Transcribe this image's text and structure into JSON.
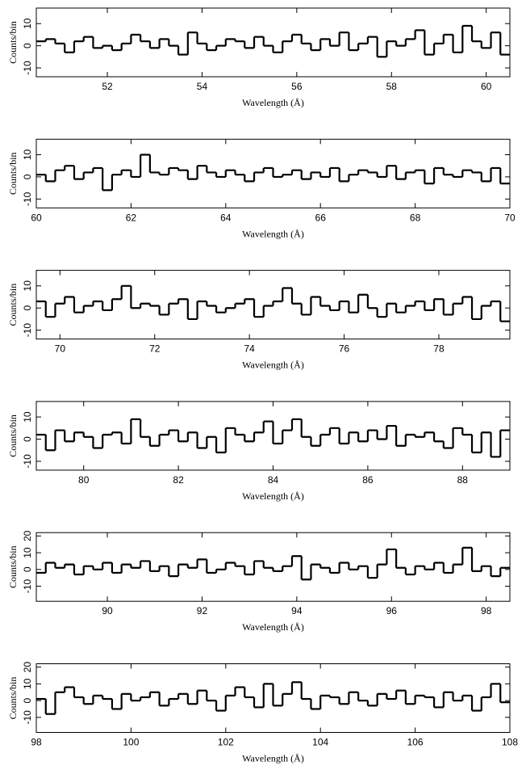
{
  "chart_data": [
    {
      "type": "histogram",
      "ylabel": "Counts/bin",
      "xlabel": "Wavelength (Å)",
      "color": "#000000",
      "bins": [
        50.5,
        50.7,
        50.9,
        51.1,
        51.3,
        51.5,
        51.7,
        51.9,
        52.1,
        52.3,
        52.5,
        52.7,
        52.9,
        53.1,
        53.3,
        53.5,
        53.7,
        53.9,
        54.1,
        54.3,
        54.5,
        54.7,
        54.9,
        55.1,
        55.3,
        55.5,
        55.7,
        55.9,
        56.1,
        56.3,
        56.5,
        56.7,
        56.9,
        57.1,
        57.3,
        57.5,
        57.7,
        57.9,
        58.1,
        58.3,
        58.5,
        58.7,
        58.9,
        59.1,
        59.3,
        59.5,
        59.7,
        59.9,
        60.1,
        60.3,
        60.5
      ],
      "values": [
        2,
        3,
        1,
        -3,
        2,
        4,
        -1,
        0,
        -2,
        1,
        5,
        2,
        -1,
        3,
        0,
        -4,
        6,
        1,
        -2,
        0,
        3,
        2,
        -1,
        4,
        0,
        -3,
        2,
        5,
        1,
        -2,
        3,
        0,
        6,
        -2,
        1,
        4,
        -5,
        2,
        0,
        3,
        7,
        -4,
        1,
        5,
        -3,
        9,
        2,
        -1,
        6,
        -4
      ],
      "xlim": [
        50.5,
        60.5
      ],
      "xticks": [
        52,
        54,
        56,
        58,
        60
      ],
      "ylim": [
        -14,
        17
      ],
      "yticks": [
        -10,
        0,
        10
      ]
    },
    {
      "type": "histogram",
      "ylabel": "Counts/bin",
      "xlabel": "Wavelength (Å)",
      "color": "#000000",
      "bins": [
        60,
        60.2,
        60.4,
        60.6,
        60.8,
        61,
        61.2,
        61.4,
        61.6,
        61.8,
        62,
        62.2,
        62.4,
        62.6,
        62.8,
        63,
        63.2,
        63.4,
        63.6,
        63.8,
        64,
        64.2,
        64.4,
        64.6,
        64.8,
        65,
        65.2,
        65.4,
        65.6,
        65.8,
        66,
        66.2,
        66.4,
        66.6,
        66.8,
        67,
        67.2,
        67.4,
        67.6,
        67.8,
        68,
        68.2,
        68.4,
        68.6,
        68.8,
        69,
        69.2,
        69.4,
        69.6,
        69.8,
        70
      ],
      "values": [
        1,
        -2,
        3,
        5,
        -1,
        2,
        4,
        -6,
        1,
        3,
        0,
        10,
        2,
        1,
        4,
        3,
        -1,
        5,
        2,
        0,
        3,
        1,
        -2,
        2,
        4,
        0,
        1,
        3,
        -1,
        2,
        0,
        4,
        -2,
        1,
        3,
        2,
        0,
        5,
        -1,
        2,
        3,
        -3,
        4,
        1,
        0,
        3,
        2,
        -2,
        4,
        -3
      ],
      "xlim": [
        60,
        70
      ],
      "xticks": [
        60,
        62,
        64,
        66,
        68,
        70
      ],
      "ylim": [
        -14,
        17
      ],
      "yticks": [
        -10,
        0,
        10
      ]
    },
    {
      "type": "histogram",
      "ylabel": "Counts/bin",
      "xlabel": "Wavelength (Å)",
      "color": "#000000",
      "bins": [
        69.5,
        69.7,
        69.9,
        70.1,
        70.3,
        70.5,
        70.7,
        70.9,
        71.1,
        71.3,
        71.5,
        71.7,
        71.9,
        72.1,
        72.3,
        72.5,
        72.7,
        72.9,
        73.1,
        73.3,
        73.5,
        73.7,
        73.9,
        74.1,
        74.3,
        74.5,
        74.7,
        74.9,
        75.1,
        75.3,
        75.5,
        75.7,
        75.9,
        76.1,
        76.3,
        76.5,
        76.7,
        76.9,
        77.1,
        77.3,
        77.5,
        77.7,
        77.9,
        78.1,
        78.3,
        78.5,
        78.7,
        78.9,
        79.1,
        79.3,
        79.5
      ],
      "values": [
        3,
        -4,
        2,
        5,
        -2,
        1,
        3,
        -1,
        4,
        10,
        0,
        2,
        1,
        -3,
        2,
        4,
        -5,
        3,
        1,
        -2,
        0,
        2,
        4,
        -4,
        1,
        3,
        9,
        2,
        -3,
        5,
        1,
        -1,
        3,
        -2,
        6,
        0,
        -4,
        2,
        -2,
        1,
        3,
        -1,
        4,
        -3,
        2,
        5,
        -5,
        1,
        3,
        -6
      ],
      "xlim": [
        69.5,
        79.5
      ],
      "xticks": [
        70,
        72,
        74,
        76,
        78
      ],
      "ylim": [
        -14,
        17
      ],
      "yticks": [
        -10,
        0,
        10
      ]
    },
    {
      "type": "histogram",
      "ylabel": "Counts/bin",
      "xlabel": "Wavelength (Å)",
      "color": "#000000",
      "bins": [
        79,
        79.2,
        79.4,
        79.6,
        79.8,
        80,
        80.2,
        80.4,
        80.6,
        80.8,
        81,
        81.2,
        81.4,
        81.6,
        81.8,
        82,
        82.2,
        82.4,
        82.6,
        82.8,
        83,
        83.2,
        83.4,
        83.6,
        83.8,
        84,
        84.2,
        84.4,
        84.6,
        84.8,
        85,
        85.2,
        85.4,
        85.6,
        85.8,
        86,
        86.2,
        86.4,
        86.6,
        86.8,
        87,
        87.2,
        87.4,
        87.6,
        87.8,
        88,
        88.2,
        88.4,
        88.6,
        88.8,
        89
      ],
      "values": [
        2,
        -5,
        4,
        -1,
        3,
        1,
        -4,
        2,
        3,
        -2,
        9,
        1,
        -3,
        2,
        4,
        -1,
        3,
        -4,
        1,
        -6,
        5,
        2,
        -1,
        3,
        8,
        -2,
        4,
        9,
        1,
        -3,
        2,
        5,
        -2,
        3,
        -1,
        4,
        0,
        6,
        -3,
        2,
        1,
        3,
        -1,
        -4,
        5,
        2,
        -6,
        3,
        -8,
        4
      ],
      "xlim": [
        79,
        89
      ],
      "xticks": [
        80,
        82,
        84,
        86,
        88
      ],
      "ylim": [
        -14,
        17
      ],
      "yticks": [
        -10,
        0,
        10
      ]
    },
    {
      "type": "histogram",
      "ylabel": "Counts/bin",
      "xlabel": "Wavelength (Å)",
      "color": "#000000",
      "bins": [
        88.5,
        88.7,
        88.9,
        89.1,
        89.3,
        89.5,
        89.7,
        89.9,
        90.1,
        90.3,
        90.5,
        90.7,
        90.9,
        91.1,
        91.3,
        91.5,
        91.7,
        91.9,
        92.1,
        92.3,
        92.5,
        92.7,
        92.9,
        93.1,
        93.3,
        93.5,
        93.7,
        93.9,
        94.1,
        94.3,
        94.5,
        94.7,
        94.9,
        95.1,
        95.3,
        95.5,
        95.7,
        95.9,
        96.1,
        96.3,
        96.5,
        96.7,
        96.9,
        97.1,
        97.3,
        97.5,
        97.7,
        97.9,
        98.1,
        98.3,
        98.5
      ],
      "values": [
        -2,
        4,
        1,
        3,
        -3,
        2,
        0,
        4,
        -2,
        3,
        1,
        5,
        -1,
        2,
        -4,
        3,
        1,
        6,
        -2,
        0,
        4,
        2,
        -3,
        5,
        1,
        -1,
        2,
        8,
        -6,
        3,
        1,
        -2,
        4,
        0,
        2,
        -5,
        3,
        12,
        1,
        -3,
        2,
        0,
        4,
        -2,
        3,
        13,
        -1,
        2,
        -4,
        1
      ],
      "xlim": [
        88.5,
        98.5
      ],
      "xticks": [
        90,
        92,
        94,
        96,
        98
      ],
      "ylim": [
        -19,
        22
      ],
      "yticks": [
        -10,
        0,
        10,
        20
      ]
    },
    {
      "type": "histogram",
      "ylabel": "Counts/bin",
      "xlabel": "Wavelength (Å)",
      "color": "#000000",
      "bins": [
        98,
        98.2,
        98.4,
        98.6,
        98.8,
        99,
        99.2,
        99.4,
        99.6,
        99.8,
        100,
        100.2,
        100.4,
        100.6,
        100.8,
        101,
        101.2,
        101.4,
        101.6,
        101.8,
        102,
        102.2,
        102.4,
        102.6,
        102.8,
        103,
        103.2,
        103.4,
        103.6,
        103.8,
        104,
        104.2,
        104.4,
        104.6,
        104.8,
        105,
        105.2,
        105.4,
        105.6,
        105.8,
        106,
        106.2,
        106.4,
        106.6,
        106.8,
        107,
        107.2,
        107.4,
        107.6,
        107.8,
        108
      ],
      "values": [
        1,
        -8,
        5,
        8,
        2,
        -2,
        3,
        1,
        -5,
        4,
        0,
        2,
        5,
        -3,
        1,
        4,
        -2,
        6,
        0,
        -6,
        3,
        8,
        2,
        -4,
        10,
        -3,
        4,
        11,
        1,
        -5,
        3,
        2,
        -2,
        5,
        0,
        -3,
        4,
        1,
        6,
        -2,
        3,
        2,
        -4,
        5,
        0,
        3,
        -6,
        2,
        10,
        -1
      ],
      "xlim": [
        98,
        108
      ],
      "xticks": [
        98,
        100,
        102,
        104,
        106,
        108
      ],
      "ylim": [
        -19,
        22
      ],
      "yticks": [
        -10,
        0,
        10,
        20
      ]
    }
  ]
}
